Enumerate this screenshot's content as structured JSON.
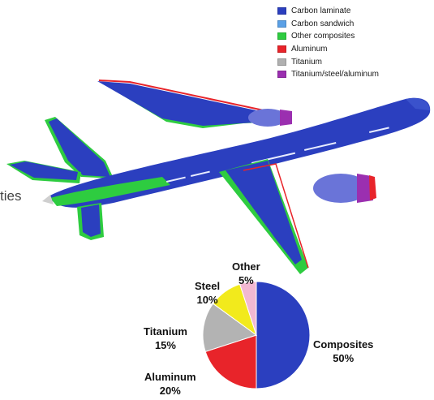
{
  "legend": [
    {
      "label": "Carbon laminate",
      "color": "#2b3fbf"
    },
    {
      "label": "Carbon sandwich",
      "color": "#5aa0e6"
    },
    {
      "label": "Other composites",
      "color": "#2ecc40"
    },
    {
      "label": "Aluminum",
      "color": "#e8242a"
    },
    {
      "label": "Titanium",
      "color": "#b0b0b0"
    },
    {
      "label": "Titanium/steel/aluminum",
      "color": "#9b2fb0"
    }
  ],
  "side_text": "ties",
  "chart_data": {
    "type": "pie",
    "slices": [
      {
        "label": "Composites",
        "value": 50,
        "value_label": "50%",
        "color": "#2b3fbf"
      },
      {
        "label": "Aluminum",
        "value": 20,
        "value_label": "20%",
        "color": "#e8242a"
      },
      {
        "label": "Titanium",
        "value": 15,
        "value_label": "15%",
        "color": "#b3b3b3"
      },
      {
        "label": "Steel",
        "value": 10,
        "value_label": "10%",
        "color": "#f2ea1c"
      },
      {
        "label": "Other",
        "value": 5,
        "value_label": "5%",
        "color": "#f2b8d2"
      }
    ]
  }
}
